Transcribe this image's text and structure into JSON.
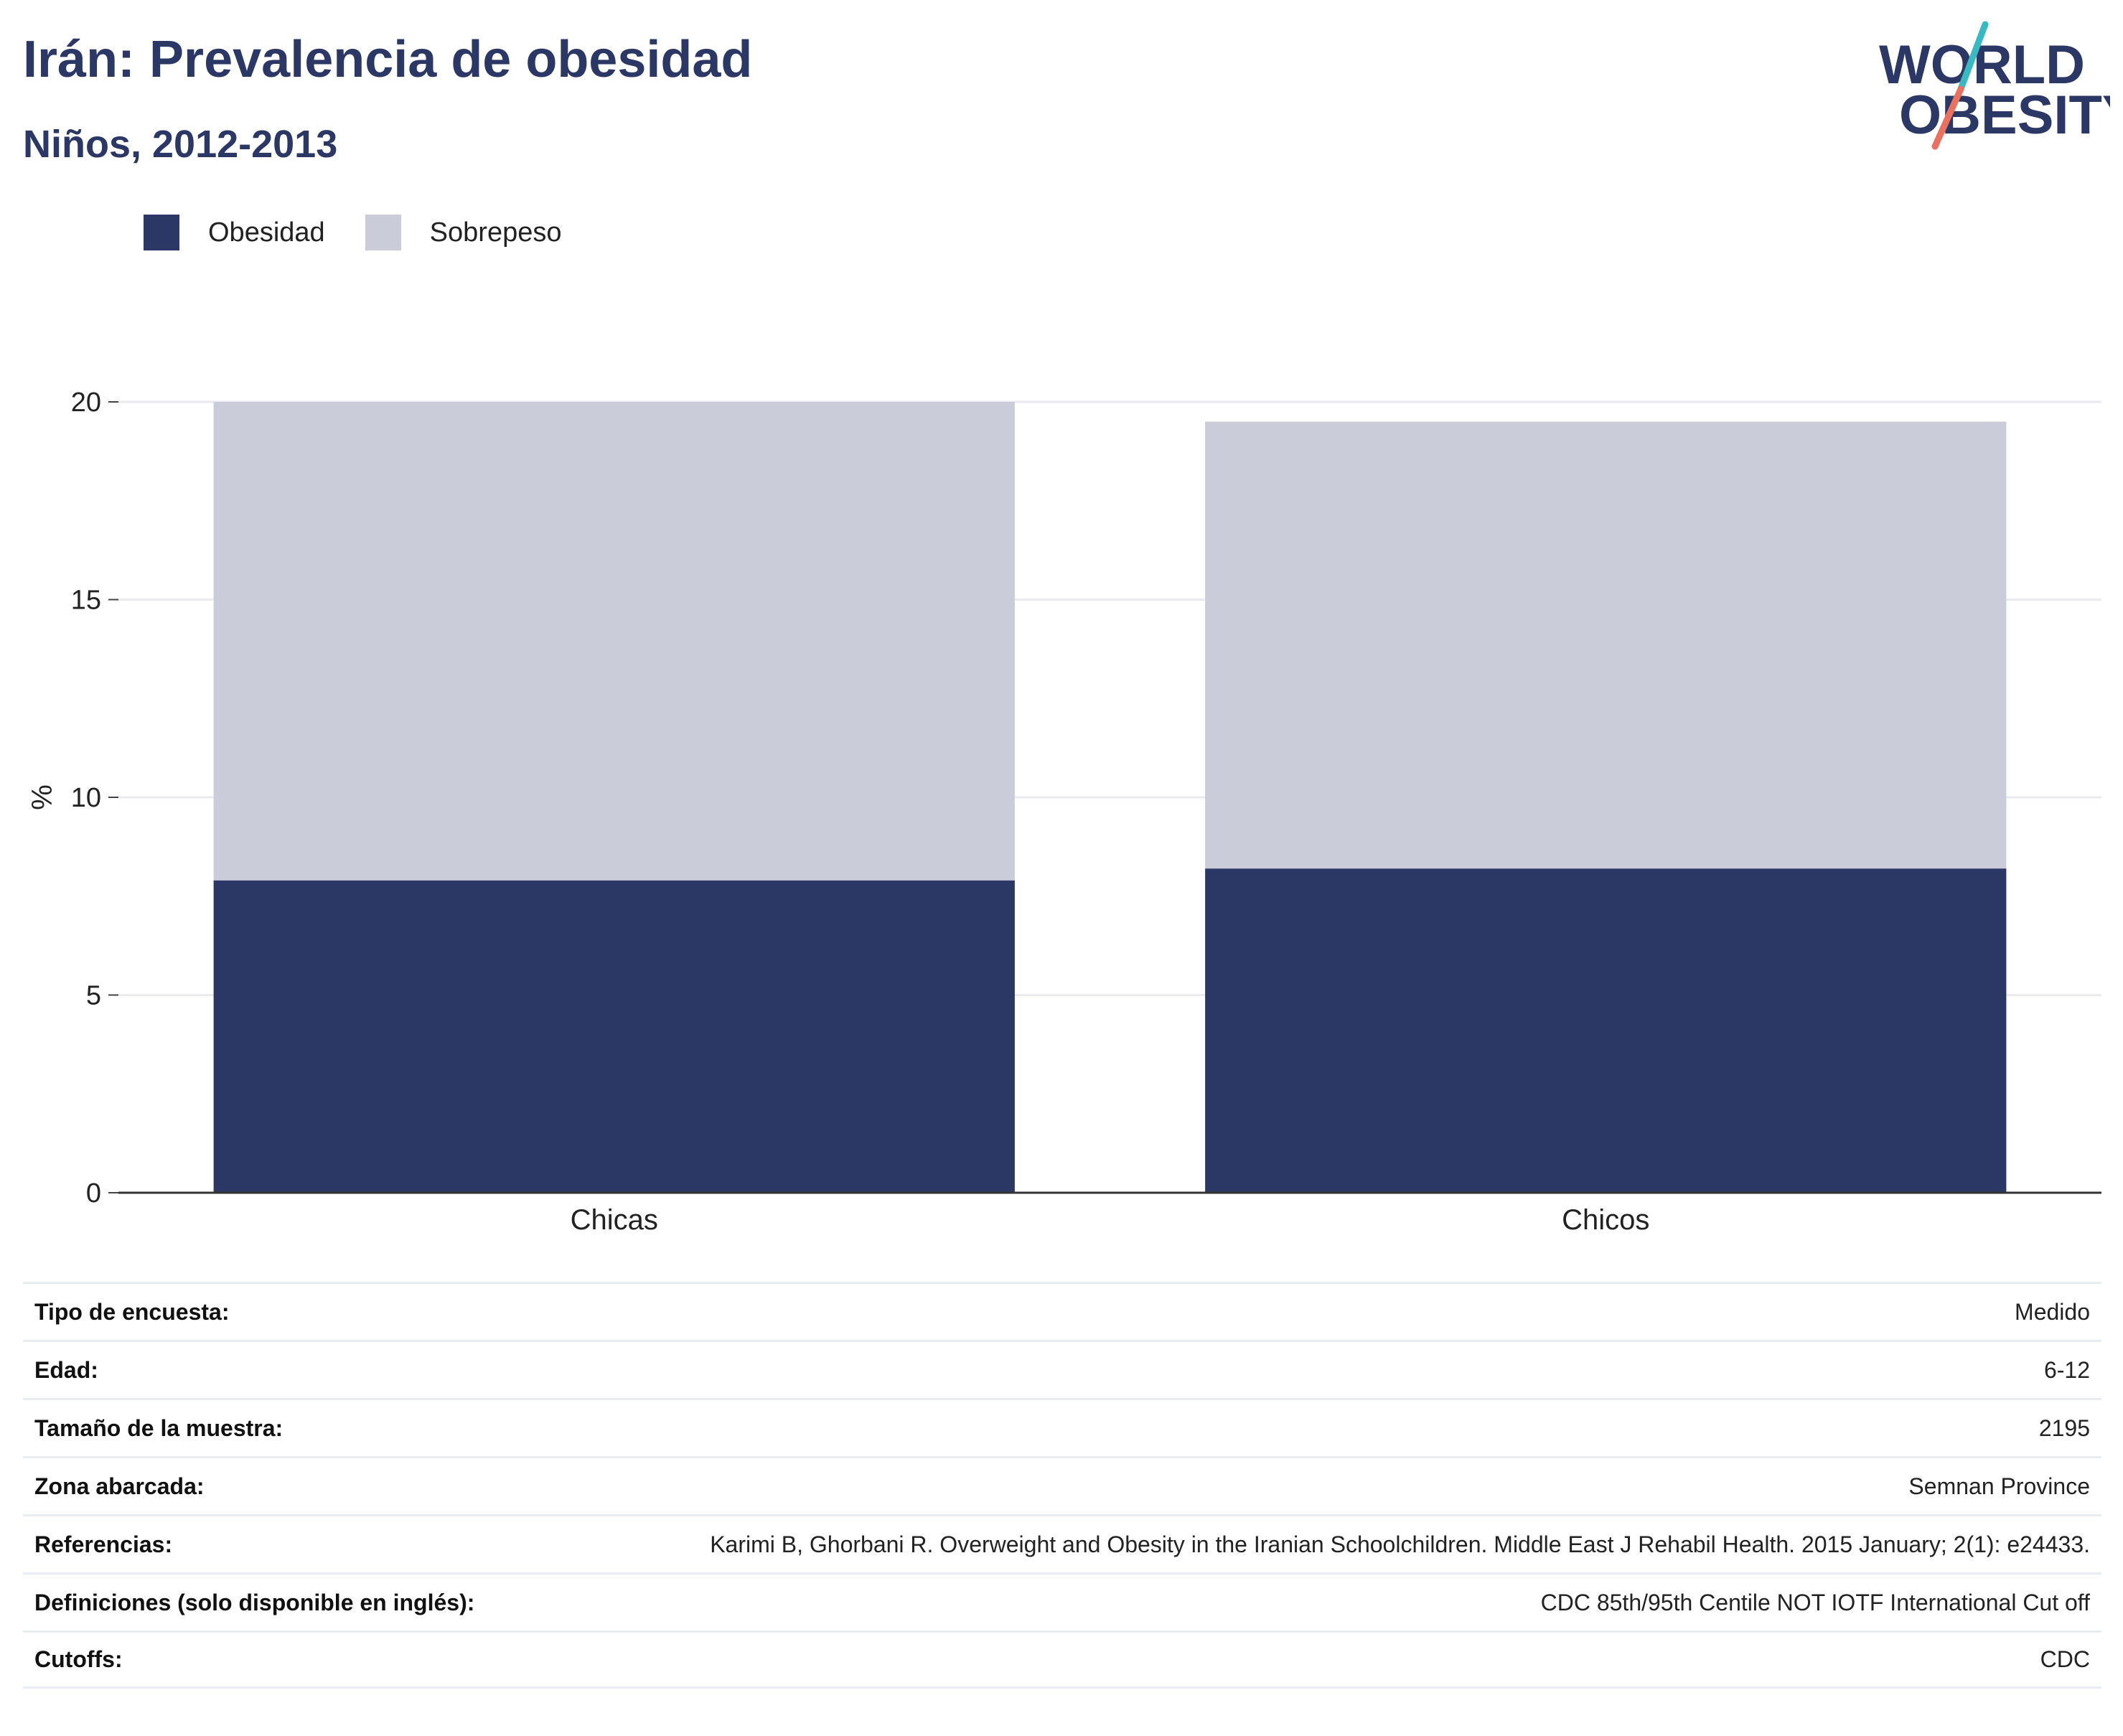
{
  "header": {
    "title": "Irán: Prevalencia de obesidad",
    "subtitle": "Niños, 2012-2013"
  },
  "logo": {
    "line1": "WORLD",
    "line2": "OBESITY",
    "colors": {
      "text": "#2b3764",
      "slash_top": "#3bb9c2",
      "slash_bottom": "#e8725f"
    }
  },
  "legend": [
    {
      "label": "Obesidad",
      "color": "#2b3764"
    },
    {
      "label": "Sobrepeso",
      "color": "#cacdd9"
    }
  ],
  "chart_data": {
    "type": "bar",
    "stacked": true,
    "categories": [
      "Chicas",
      "Chicos"
    ],
    "series": [
      {
        "name": "Obesidad",
        "values": [
          7.9,
          8.2
        ],
        "color": "#2b3764"
      },
      {
        "name": "Sobrepeso",
        "values": [
          12.1,
          11.3
        ],
        "color": "#cacdd9"
      }
    ],
    "totals": [
      20.0,
      19.5
    ],
    "ylabel": "%",
    "ylim": [
      0,
      20
    ],
    "yticks": [
      0,
      5,
      10,
      15,
      20
    ],
    "grid": true,
    "legend_position": "top-left"
  },
  "info_table": [
    {
      "label": "Tipo de encuesta:",
      "value": "Medido"
    },
    {
      "label": "Edad:",
      "value": "6-12"
    },
    {
      "label": "Tamaño de la muestra:",
      "value": "2195"
    },
    {
      "label": "Zona abarcada:",
      "value": "Semnan Province"
    },
    {
      "label": "Referencias:",
      "value": "Karimi B, Ghorbani R. Overweight and Obesity in the Iranian Schoolchildren. Middle East J Rehabil Health. 2015 January; 2(1): e24433."
    },
    {
      "label": "Definiciones (solo disponible en inglés):",
      "value": "CDC 85th/95th Centile NOT IOTF International Cut off"
    },
    {
      "label": "Cutoffs:",
      "value": "CDC"
    }
  ]
}
